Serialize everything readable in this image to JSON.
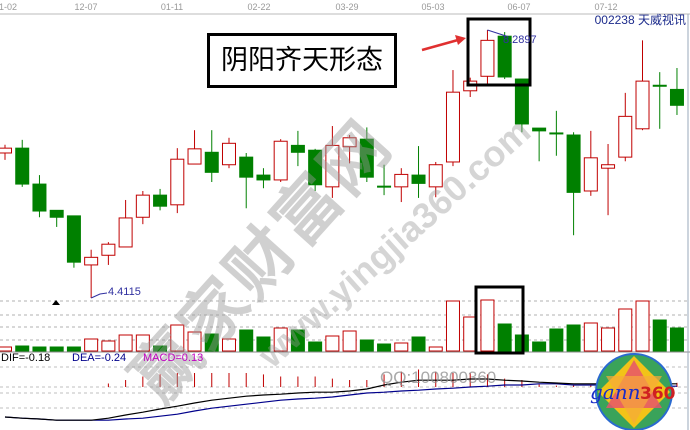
{
  "header": {
    "stock_code": "002238",
    "stock_name": "天威视讯"
  },
  "annotation": {
    "pattern_label": "阴阳齐天形态"
  },
  "macd_legend": {
    "dif": "DIF=-0.18",
    "dea": "DEA=-0.24",
    "macd": "MACD=0.13"
  },
  "watermarks": {
    "site_cn": "赢家财富网",
    "site_url": "www.yingjia360.com",
    "qq": "QQ:100800360"
  },
  "logo": {
    "text": "gann360"
  },
  "colors": {
    "up": "#c00000",
    "down": "#008000",
    "dif": "#000000",
    "dea": "#00008b",
    "macd_label": "#c000c0",
    "annotation": "#3030a0",
    "arrow": "#e03030"
  },
  "chart_data": {
    "type": "candlestick",
    "x_tick_labels": [
      "1-02",
      "12-07",
      "01-11",
      "02-22",
      "03-29",
      "05-03",
      "06-07",
      "07-12"
    ],
    "price_labels": {
      "low": "4.4115",
      "high": "8.2897"
    },
    "ylim": [
      4.4115,
      8.2897
    ],
    "candles_ohlc": [
      [
        6.51,
        6.63,
        6.41,
        6.58
      ],
      [
        6.58,
        6.7,
        6.02,
        6.06
      ],
      [
        6.06,
        6.19,
        5.58,
        5.67
      ],
      [
        5.68,
        5.68,
        5.44,
        5.58
      ],
      [
        5.6,
        5.6,
        4.85,
        4.93
      ],
      [
        4.89,
        5.11,
        4.4115,
        5.0
      ],
      [
        5.03,
        5.22,
        4.89,
        5.19
      ],
      [
        5.15,
        5.83,
        5.15,
        5.57
      ],
      [
        5.58,
        5.96,
        5.48,
        5.9
      ],
      [
        5.9,
        5.99,
        5.68,
        5.74
      ],
      [
        5.76,
        6.58,
        5.64,
        6.42
      ],
      [
        6.35,
        6.84,
        6.35,
        6.57
      ],
      [
        6.52,
        6.84,
        6.09,
        6.23
      ],
      [
        6.34,
        6.73,
        6.29,
        6.65
      ],
      [
        6.45,
        6.51,
        5.71,
        6.16
      ],
      [
        6.19,
        6.29,
        6.0,
        6.12
      ],
      [
        6.12,
        6.71,
        6.09,
        6.68
      ],
      [
        6.62,
        6.83,
        6.32,
        6.52
      ],
      [
        6.55,
        6.57,
        5.96,
        6.05
      ],
      [
        6.02,
        6.9,
        5.86,
        6.62
      ],
      [
        6.6,
        6.77,
        6.36,
        6.73
      ],
      [
        6.71,
        6.88,
        6.09,
        6.16
      ],
      [
        6.03,
        6.34,
        5.9,
        6.03
      ],
      [
        6.02,
        6.29,
        5.8,
        6.2
      ],
      [
        6.19,
        6.61,
        5.86,
        6.07
      ],
      [
        6.02,
        6.38,
        5.87,
        6.34
      ],
      [
        6.38,
        7.71,
        6.32,
        7.39
      ],
      [
        7.41,
        7.6,
        7.32,
        7.55
      ],
      [
        7.62,
        8.2897,
        7.48,
        8.14
      ],
      [
        8.2,
        8.26,
        7.58,
        7.61
      ],
      [
        7.58,
        7.58,
        6.81,
        6.93
      ],
      [
        6.87,
        6.87,
        6.39,
        6.83
      ],
      [
        6.8,
        7.12,
        6.47,
        6.8
      ],
      [
        6.77,
        6.81,
        5.32,
        5.94
      ],
      [
        5.96,
        6.83,
        5.89,
        6.44
      ],
      [
        6.29,
        6.64,
        5.61,
        6.34
      ],
      [
        6.45,
        7.38,
        6.39,
        7.04
      ],
      [
        6.86,
        8.14,
        6.84,
        7.55
      ],
      [
        7.49,
        7.68,
        6.86,
        7.49
      ],
      [
        7.43,
        7.74,
        7.06,
        7.2
      ]
    ],
    "volume_relative": [
      4,
      5,
      4,
      4,
      4,
      12,
      10,
      16,
      16,
      5,
      26,
      19,
      17,
      12,
      21,
      14,
      23,
      21,
      9,
      15,
      20,
      11,
      7,
      8,
      14,
      4,
      50,
      34,
      51,
      27,
      16,
      9,
      22,
      26,
      28,
      23,
      42,
      50,
      31,
      23
    ],
    "dif": [
      -1.01,
      -1.04,
      -1.06,
      -1.09,
      -1.09,
      -1.09,
      -1.04,
      -0.96,
      -0.89,
      -0.81,
      -0.74,
      -0.66,
      -0.59,
      -0.54,
      -0.49,
      -0.46,
      -0.44,
      -0.41,
      -0.39,
      -0.39,
      -0.36,
      -0.31,
      -0.21,
      -0.14,
      -0.09,
      -0.09,
      -0.09,
      -0.06,
      -0.06,
      -0.09,
      -0.11,
      -0.14,
      -0.16,
      -0.18,
      -0.18,
      -0.18,
      -0.18,
      -0.18,
      -0.18,
      -0.18
    ],
    "dea": [
      -1.01,
      -1.04,
      -1.06,
      -1.09,
      -1.09,
      -1.09,
      -1.09,
      -1.06,
      -1.04,
      -0.99,
      -0.94,
      -0.86,
      -0.79,
      -0.74,
      -0.69,
      -0.64,
      -0.59,
      -0.56,
      -0.54,
      -0.51,
      -0.46,
      -0.41,
      -0.39,
      -0.36,
      -0.34,
      -0.31,
      -0.29,
      -0.26,
      -0.24,
      -0.21,
      -0.21,
      -0.18,
      -0.18,
      -0.21,
      -0.21,
      -0.21,
      -0.21,
      -0.24,
      -0.24,
      -0.24
    ],
    "highlighted_candles": [
      29,
      30
    ]
  }
}
